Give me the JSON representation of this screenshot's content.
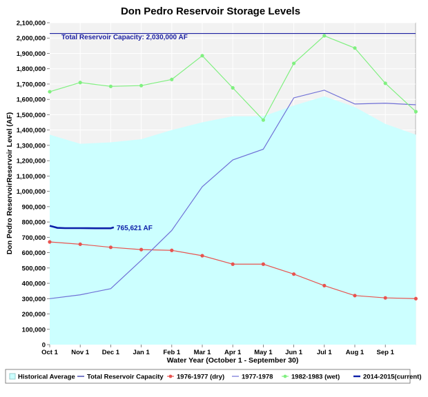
{
  "chart_data": {
    "type": "line",
    "title": "Don Pedro Reservoir Storage Levels",
    "xlabel": "Water Year (October 1 - September 30)",
    "ylabel": "Don Pedro ReservoirReservoir Level (AF)",
    "ylim": [
      0,
      2100000
    ],
    "y_ticks": [
      "0",
      "100,000",
      "200,000",
      "300,000",
      "400,000",
      "500,000",
      "600,000",
      "700,000",
      "800,000",
      "900,000",
      "1,000,000",
      "1,100,000",
      "1,200,000",
      "1,300,000",
      "1,400,000",
      "1,500,000",
      "1,600,000",
      "1,700,000",
      "1,800,000",
      "1,900,000",
      "2,000,000",
      "2,100,000"
    ],
    "x_ticks": [
      "Oct 1",
      "Nov 1",
      "Dec 1",
      "Jan 1",
      "Feb 1",
      "Mar 1",
      "Apr 1",
      "May 1",
      "Jun 1",
      "Jul 1",
      "Aug 1",
      "Sep 1"
    ],
    "grid": true,
    "legend_position": "bottom",
    "capacity": {
      "name": "Total Reservoir Capacity",
      "value": 2030000,
      "label": "Total Reservoir Capacity: 2,030,000 AF",
      "color": "#1b1fa0"
    },
    "series": [
      {
        "name": "Historical Average",
        "kind": "area",
        "color": "#ccffff",
        "points": [
          [
            0,
            1370000
          ],
          [
            1,
            1310000
          ],
          [
            2,
            1320000
          ],
          [
            3,
            1340000
          ],
          [
            4,
            1400000
          ],
          [
            5,
            1450000
          ],
          [
            6,
            1490000
          ],
          [
            7,
            1490000
          ],
          [
            8,
            1560000
          ],
          [
            9,
            1620000
          ],
          [
            10,
            1550000
          ],
          [
            11,
            1440000
          ],
          [
            12,
            1370000
          ]
        ]
      },
      {
        "name": "1976-1977 (dry)",
        "kind": "line",
        "color": "#e8534f",
        "markers": true,
        "points": [
          [
            0,
            670000
          ],
          [
            1,
            655000
          ],
          [
            2,
            635000
          ],
          [
            3,
            620000
          ],
          [
            4,
            615000
          ],
          [
            5,
            580000
          ],
          [
            6,
            525000
          ],
          [
            7,
            525000
          ],
          [
            8,
            460000
          ],
          [
            9,
            385000
          ],
          [
            10,
            320000
          ],
          [
            11,
            305000
          ],
          [
            12,
            300000
          ]
        ]
      },
      {
        "name": "1977-1978",
        "kind": "line",
        "color": "#6f6fd6",
        "markers": false,
        "points": [
          [
            0,
            300000
          ],
          [
            1,
            325000
          ],
          [
            2,
            365000
          ],
          [
            3,
            550000
          ],
          [
            4,
            745000
          ],
          [
            5,
            1030000
          ],
          [
            6,
            1205000
          ],
          [
            7,
            1275000
          ],
          [
            8,
            1610000
          ],
          [
            9,
            1660000
          ],
          [
            10,
            1570000
          ],
          [
            11,
            1575000
          ],
          [
            12,
            1565000
          ]
        ]
      },
      {
        "name": "1982-1983 (wet)",
        "kind": "line",
        "color": "#80f080",
        "markers": true,
        "points": [
          [
            0,
            1650000
          ],
          [
            1,
            1710000
          ],
          [
            2,
            1685000
          ],
          [
            3,
            1690000
          ],
          [
            4,
            1730000
          ],
          [
            5,
            1885000
          ],
          [
            6,
            1675000
          ],
          [
            7,
            1465000
          ],
          [
            8,
            1835000
          ],
          [
            9,
            2015000
          ],
          [
            10,
            1935000
          ],
          [
            11,
            1705000
          ],
          [
            12,
            1520000
          ]
        ]
      },
      {
        "name": "2014-2015(current)",
        "kind": "line",
        "color": "#0b1ea8",
        "markers": false,
        "thick": true,
        "points": [
          [
            0,
            775000
          ],
          [
            0.1,
            770000
          ],
          [
            0.25,
            762000
          ],
          [
            0.5,
            760000
          ],
          [
            1,
            760000
          ],
          [
            1.5,
            759000
          ],
          [
            2,
            759000
          ],
          [
            2.05,
            762000
          ],
          [
            2.1,
            765621
          ]
        ],
        "end_label": "765,621 AF"
      }
    ]
  }
}
